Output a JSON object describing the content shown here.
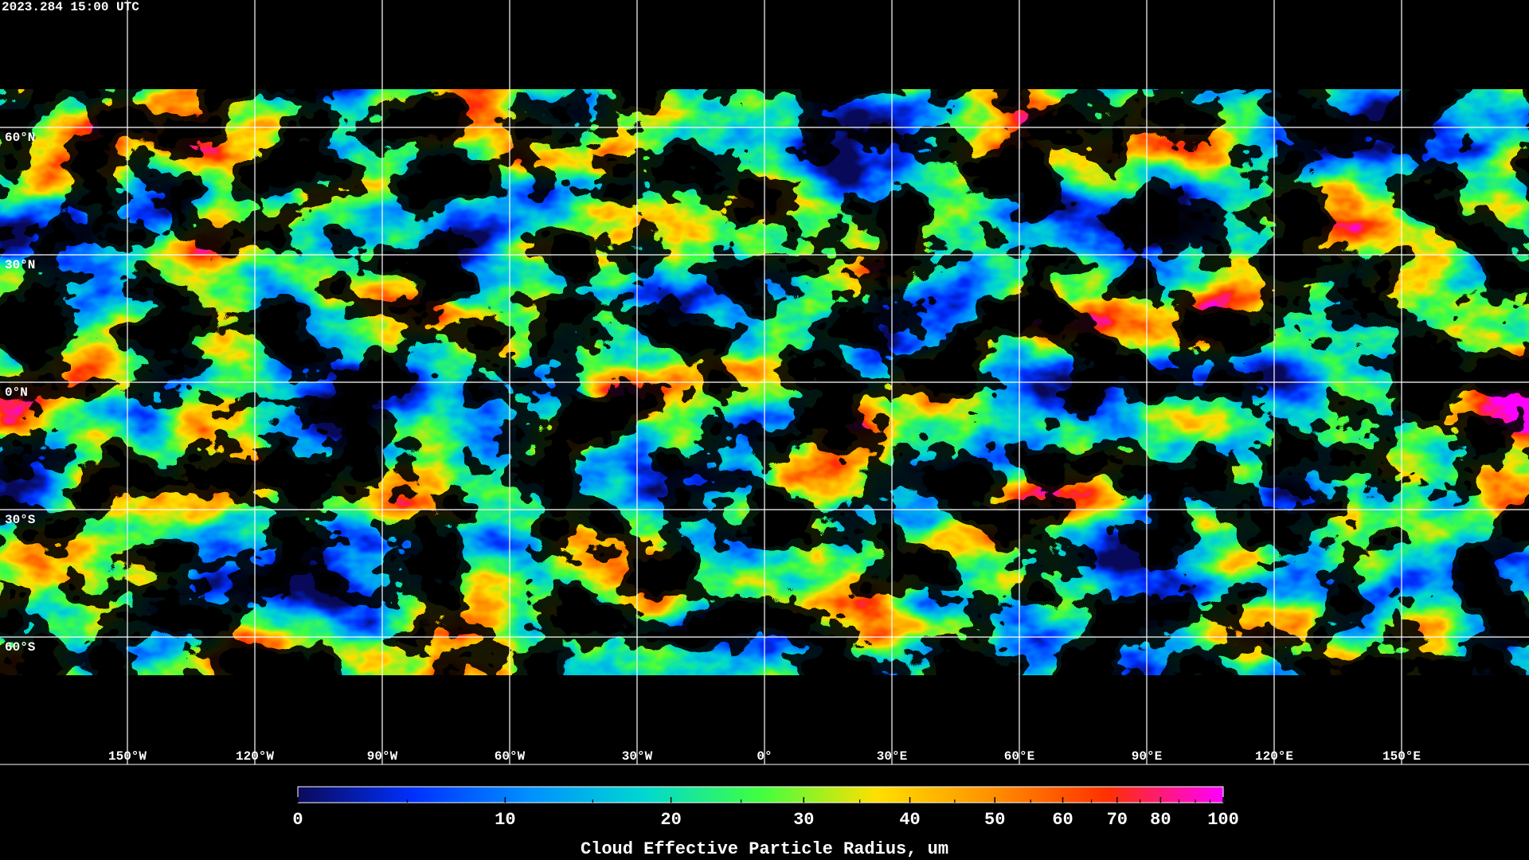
{
  "chart_data": {
    "type": "map",
    "timestamp": "2023.284 15:00 UTC",
    "lat_ticks": [
      {
        "value": 60,
        "label": "60°N"
      },
      {
        "value": 30,
        "label": "30°N"
      },
      {
        "value": 0,
        "label": "0°N"
      },
      {
        "value": -30,
        "label": "30°S"
      },
      {
        "value": -60,
        "label": "60°S"
      }
    ],
    "lon_ticks": [
      {
        "value": -150,
        "label": "150°W"
      },
      {
        "value": -120,
        "label": "120°W"
      },
      {
        "value": -90,
        "label": "90°W"
      },
      {
        "value": -60,
        "label": "60°W"
      },
      {
        "value": -30,
        "label": "30°W"
      },
      {
        "value": 0,
        "label": "0°"
      },
      {
        "value": 30,
        "label": "30°E"
      },
      {
        "value": 60,
        "label": "60°E"
      },
      {
        "value": 90,
        "label": "90°E"
      },
      {
        "value": 120,
        "label": "120°E"
      },
      {
        "value": 150,
        "label": "150°E"
      }
    ],
    "grid": true,
    "colorbar": {
      "label": "Cloud Effective Particle Radius, um",
      "lim": [
        0,
        100
      ],
      "ticks": [
        0,
        10,
        20,
        30,
        40,
        50,
        60,
        70,
        80,
        100
      ],
      "minor_ticks": [
        5,
        15,
        25,
        35,
        45,
        55,
        65,
        75,
        85,
        90,
        95
      ],
      "colormap": [
        "#0a0a5a",
        "#0030ff",
        "#0090ff",
        "#00d8d0",
        "#40ff40",
        "#ffe000",
        "#ff9000",
        "#ff3000",
        "#ff00ff"
      ]
    }
  }
}
